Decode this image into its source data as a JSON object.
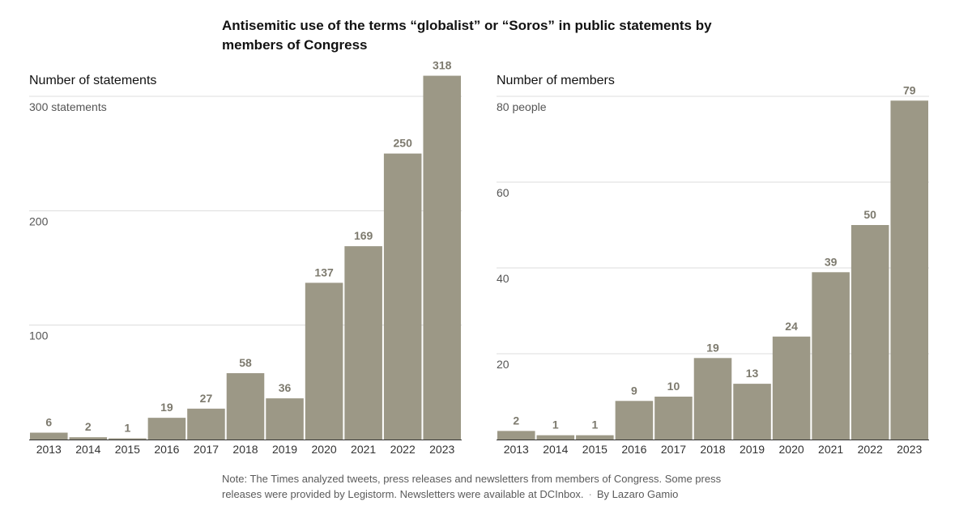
{
  "title": "Antisemitic use of the terms “globalist” or “Soros” in public statements by members of Congress",
  "chart_data": [
    {
      "type": "bar",
      "ylabel": "Number of statements",
      "categories": [
        "2013",
        "2014",
        "2015",
        "2016",
        "2017",
        "2018",
        "2019",
        "2020",
        "2021",
        "2022",
        "2023"
      ],
      "values": [
        6,
        2,
        1,
        19,
        27,
        58,
        36,
        137,
        169,
        250,
        318
      ],
      "ylim": [
        0,
        300
      ],
      "yticks": [
        {
          "value": 100,
          "label": "100"
        },
        {
          "value": 200,
          "label": "200"
        },
        {
          "value": 300,
          "label": "300 statements"
        }
      ],
      "grid": true
    },
    {
      "type": "bar",
      "ylabel": "Number of members",
      "categories": [
        "2013",
        "2014",
        "2015",
        "2016",
        "2017",
        "2018",
        "2019",
        "2020",
        "2021",
        "2022",
        "2023"
      ],
      "values": [
        2,
        1,
        1,
        9,
        10,
        19,
        13,
        24,
        39,
        50,
        79
      ],
      "ylim": [
        0,
        80
      ],
      "yticks": [
        {
          "value": 20,
          "label": "20"
        },
        {
          "value": 40,
          "label": "40"
        },
        {
          "value": 60,
          "label": "60"
        },
        {
          "value": 80,
          "label": "80 people"
        }
      ],
      "grid": true
    }
  ],
  "note": {
    "text": "Note: The Times analyzed tweets, press releases and newsletters from members of Congress. Some press releases were provided by Legistorm. Newsletters were available at DCInbox.",
    "separator": "·",
    "byline": "By Lazaro Gamio"
  },
  "colors": {
    "bar": "#9c9886",
    "value_label": "#7d7a6e",
    "gridline": "#dcdcdc"
  }
}
